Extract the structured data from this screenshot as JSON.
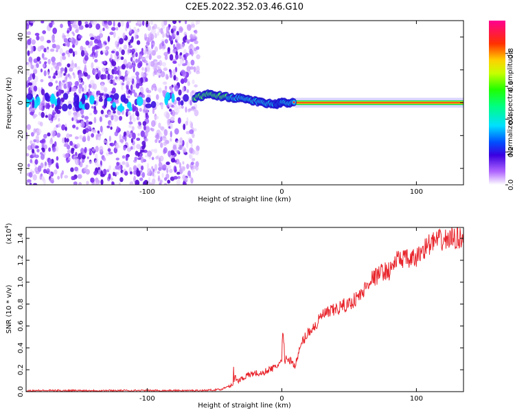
{
  "title": "C2E5.2022.352.03.46.G10",
  "chart_data": [
    {
      "type": "heatmap",
      "xlabel": "Height of straight line (km)",
      "ylabel": "Frequency (Hz)",
      "xlim": [
        -190,
        135
      ],
      "ylim": [
        -50,
        50
      ],
      "xticks": [
        -100,
        0,
        100
      ],
      "yticks": [
        -40,
        -20,
        0,
        20,
        40
      ],
      "colorbar": {
        "label": "Normalized spectral amplitude",
        "range": [
          0,
          1
        ],
        "ticks": [
          "0.0",
          "0.2",
          "0.4",
          "0.6",
          "0.8"
        ]
      },
      "trace": {
        "x": [
          -65,
          -55,
          -45,
          -35,
          -25,
          -15,
          -5,
          0,
          10,
          135
        ],
        "y": [
          3,
          5,
          4,
          3,
          2,
          0,
          -1,
          0,
          0,
          0
        ]
      }
    },
    {
      "type": "line",
      "xlabel": "Height of straight line (km)",
      "ylabel": "SNR (10 * v/v)",
      "y_multiplier": "(x10",
      "y_multiplier_exp": "4",
      "y_multiplier_close": ")",
      "xlim": [
        -190,
        135
      ],
      "ylim": [
        0,
        1.5
      ],
      "xticks": [
        -100,
        0,
        100
      ],
      "yticks": [
        "0.0",
        "0.2",
        "0.4",
        "0.6",
        "0.8",
        "1.0",
        "1.2",
        "1.4"
      ],
      "color": "#e8232a",
      "series": [
        {
          "x": [
            -190,
            -150,
            -100,
            -60,
            -45,
            -35,
            -30,
            -25,
            -20,
            -15,
            -10,
            -5,
            0,
            5,
            10,
            15,
            20,
            25,
            30,
            35,
            40,
            45,
            50,
            55,
            60,
            65,
            70,
            75,
            80,
            85,
            90,
            95,
            100,
            105,
            110,
            115,
            120,
            125,
            130,
            135
          ],
          "y": [
            0.01,
            0.01,
            0.01,
            0.01,
            0.02,
            0.08,
            0.12,
            0.15,
            0.17,
            0.16,
            0.2,
            0.22,
            0.28,
            0.3,
            0.24,
            0.45,
            0.55,
            0.6,
            0.7,
            0.72,
            0.75,
            0.78,
            0.8,
            0.85,
            0.9,
            1.02,
            1.05,
            1.1,
            1.1,
            1.2,
            1.22,
            1.2,
            1.22,
            1.3,
            1.35,
            1.38,
            1.38,
            1.4,
            1.4,
            1.42
          ]
        }
      ]
    }
  ]
}
